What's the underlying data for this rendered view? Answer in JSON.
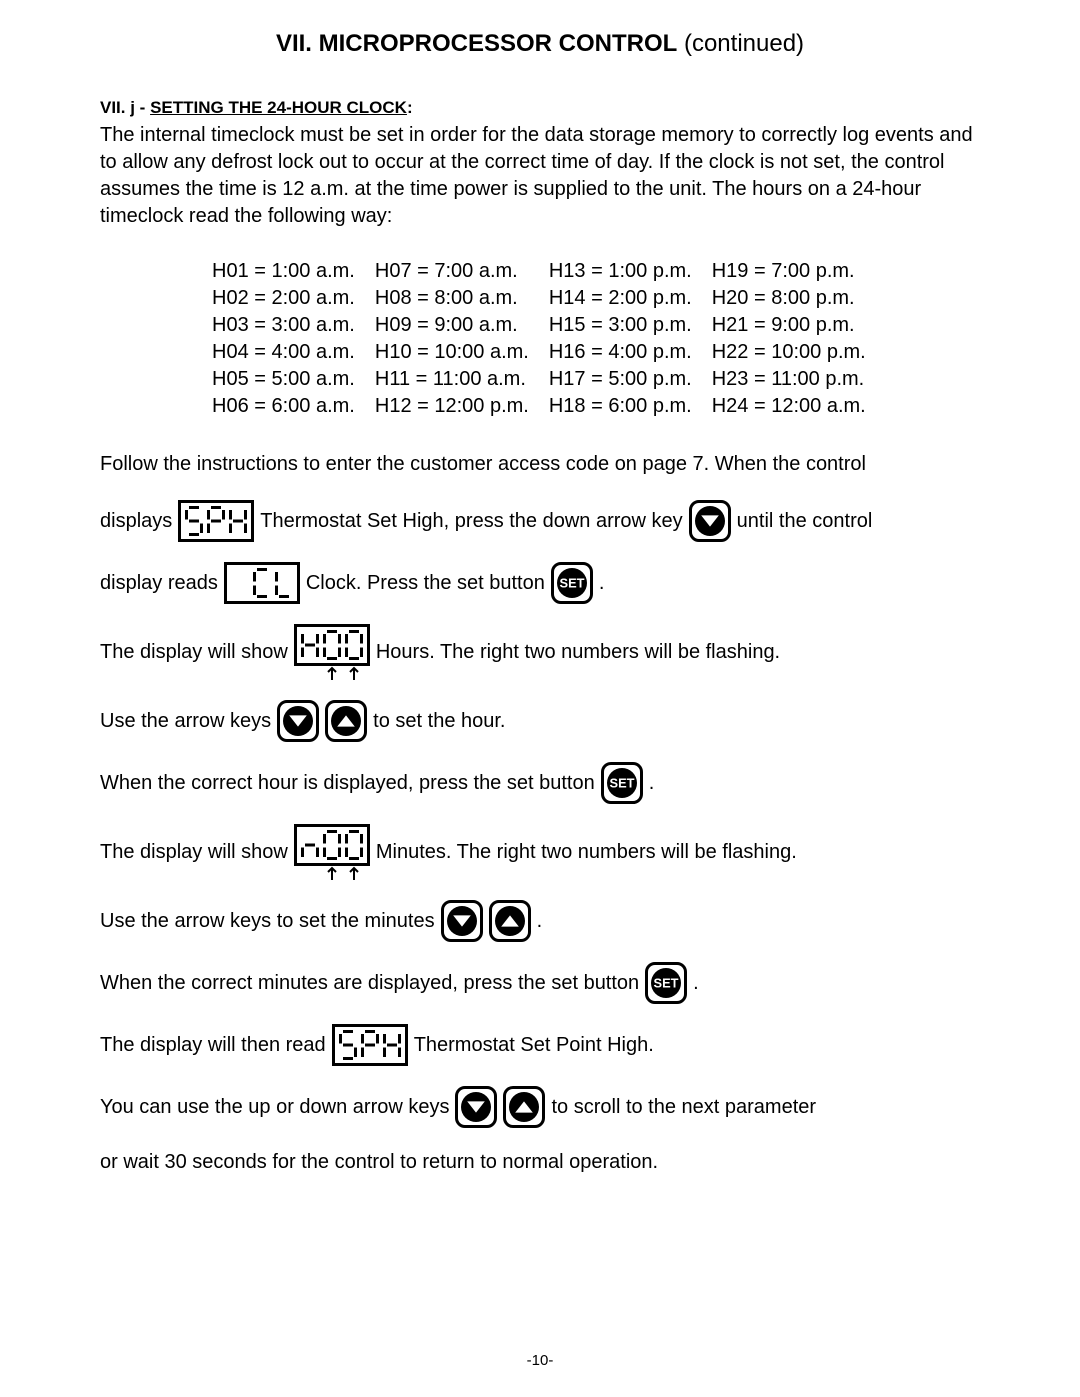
{
  "title_bold": "VII. MICROPROCESSOR CONTROL",
  "title_rest": " (continued)",
  "section_prefix": "VII. j - ",
  "section_title": "SETTING THE 24-HOUR CLOCK",
  "section_suffix": ":",
  "intro": "The internal timeclock must be set in order for the data storage memory to correctly log events and to allow any defrost lock out to occur at the correct time of day. If the clock is not set, the control assumes the time is 12 a.m. at the time power is supplied to the unit. The hours on a 24-hour timeclock read the following way:",
  "hours": {
    "col1": [
      "H01 = 1:00 a.m.",
      "H02 = 2:00 a.m.",
      "H03 = 3:00 a.m.",
      "H04 = 4:00 a.m.",
      "H05 = 5:00 a.m.",
      "H06 = 6:00 a.m."
    ],
    "col2": [
      "H07 = 7:00 a.m.",
      "H08 = 8:00 a.m.",
      "H09 = 9:00 a.m.",
      "H10 = 10:00 a.m.",
      "H11 = 11:00 a.m.",
      "H12 = 12:00 p.m."
    ],
    "col3": [
      "H13 = 1:00 p.m.",
      "H14 = 2:00 p.m.",
      "H15 = 3:00 p.m.",
      "H16 = 4:00 p.m.",
      "H17 = 5:00 p.m.",
      "H18 = 6:00 p.m."
    ],
    "col4": [
      "H19 = 7:00 p.m.",
      "H20 = 8:00 p.m.",
      "H21 = 9:00 p.m.",
      "H22 = 10:00 p.m.",
      "H23 = 11:00 p.m.",
      "H24 = 12:00 a.m."
    ]
  },
  "flow_intro": "Follow the instructions to enter the customer access code on page 7.   When the control",
  "s1_a": "displays",
  "s1_b": "Thermostat Set High, press the down arrow key",
  "s1_c": "until the control",
  "s2_a": "display  reads",
  "s2_b": "Clock. Press the set button",
  "s2_c": ".",
  "s3_a": "The display will show",
  "s3_b": "Hours. The right two numbers will be flashing.",
  "s4_a": "Use the arrow keys",
  "s4_b": "to set the hour.",
  "s5_a": "When the correct hour is displayed, press the set button",
  "s5_b": ".",
  "s6_a": "The display will show",
  "s6_b": "Minutes. The right two numbers will be flashing.",
  "s7_a": "Use the arrow keys to set the minutes",
  "s7_b": ".",
  "s8_a": "When the correct minutes are displayed, press the set button",
  "s8_b": ".",
  "s9_a": "The display will then read",
  "s9_b": "Thermostat Set Point High.",
  "s10_a": "You can use the up or down arrow keys",
  "s10_b": "to scroll to the next parameter",
  "s11": "or wait 30 seconds for the control to return to normal operation.",
  "page_number": "-10-",
  "lcd": {
    "digit_w": 18,
    "digit_h": 30,
    "stroke": 3,
    "color": "#000000"
  },
  "btn": {
    "size": 32,
    "bg": "#000000",
    "fg": "#ffffff",
    "set_label": "SET"
  }
}
